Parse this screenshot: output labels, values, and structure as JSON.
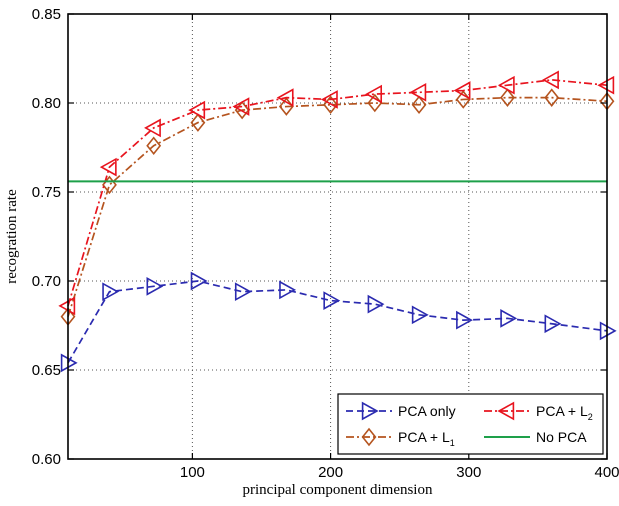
{
  "chart_data": {
    "type": "line",
    "xlabel": "principal component dimension",
    "ylabel": "recogration rate",
    "xlim": [
      10,
      400
    ],
    "ylim": [
      0.6,
      0.85
    ],
    "xticks": [
      100,
      200,
      300,
      400
    ],
    "yticks": [
      0.6,
      0.65,
      0.7,
      0.75,
      0.8,
      0.85
    ],
    "xtick_labels": [
      "100",
      "200",
      "300",
      "400"
    ],
    "ytick_labels": [
      "0.60",
      "0.65",
      "0.70",
      "0.75",
      "0.80",
      "0.85"
    ],
    "grid": true,
    "legend_position": "bottom-right",
    "series": [
      {
        "name": "PCA only",
        "name_main": "PCA only",
        "name_sub": "",
        "color": "#2b2bb0",
        "line": "dashed",
        "marker": "triangle-right",
        "x": [
          10,
          40,
          72,
          104,
          136,
          168,
          200,
          232,
          264,
          296,
          328,
          360,
          400
        ],
        "y": [
          0.654,
          0.694,
          0.697,
          0.7,
          0.694,
          0.695,
          0.689,
          0.687,
          0.681,
          0.678,
          0.679,
          0.676,
          0.672
        ]
      },
      {
        "name": "PCA + L1",
        "name_main": "PCA + L",
        "name_sub": "1",
        "color": "#b5541f",
        "line": "dashdot",
        "marker": "diamond",
        "x": [
          10,
          40,
          72,
          104,
          136,
          168,
          200,
          232,
          264,
          296,
          328,
          360,
          400
        ],
        "y": [
          0.68,
          0.754,
          0.776,
          0.789,
          0.796,
          0.798,
          0.799,
          0.8,
          0.799,
          0.802,
          0.803,
          0.803,
          0.801
        ]
      },
      {
        "name": "PCA + L2",
        "name_main": "PCA + L",
        "name_sub": "2",
        "color": "#e8141e",
        "line": "dashdot",
        "marker": "triangle-left",
        "x": [
          10,
          40,
          72,
          104,
          136,
          168,
          200,
          232,
          264,
          296,
          328,
          360,
          400
        ],
        "y": [
          0.686,
          0.764,
          0.786,
          0.796,
          0.798,
          0.803,
          0.802,
          0.805,
          0.806,
          0.807,
          0.81,
          0.813,
          0.81
        ]
      },
      {
        "name": "No PCA",
        "name_main": "No PCA",
        "name_sub": "",
        "color": "#1ea04a",
        "line": "solid",
        "marker": "none",
        "x": [
          10,
          400
        ],
        "y": [
          0.756,
          0.756
        ]
      }
    ]
  }
}
